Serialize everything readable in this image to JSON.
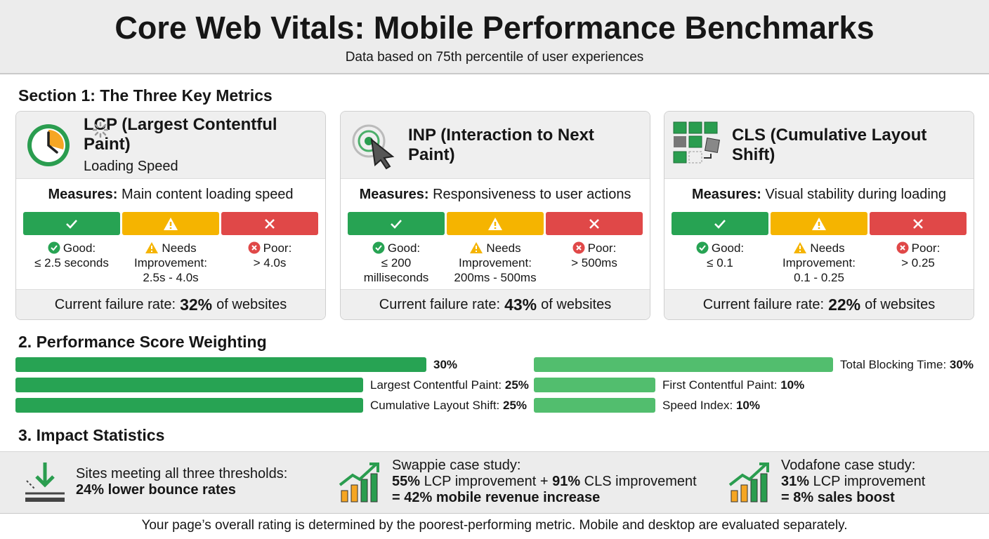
{
  "header": {
    "title": "Core Web Vitals: Mobile Performance Benchmarks",
    "subtitle": "Data based on 75th percentile of user experiences"
  },
  "section1": {
    "heading": "Section 1: The Three Key Metrics",
    "cards": [
      {
        "title": "LCP (Largest Contentful Paint)",
        "subtitle": "Loading Speed",
        "measures_label": "Measures:",
        "measures_text": "Main content loading speed",
        "ratings": [
          {
            "label": "Good:",
            "range": "≤ 2.5 seconds"
          },
          {
            "label": "Needs Improvement:",
            "range": "2.5s - 4.0s"
          },
          {
            "label": "Poor:",
            "range": "> 4.0s"
          }
        ],
        "failure": {
          "label": "Current failure rate:",
          "value": "32%",
          "suffix": "of websites"
        }
      },
      {
        "title": "INP (Interaction to Next Paint)",
        "measures_label": "Measures:",
        "measures_text": "Responsiveness to user actions",
        "ratings": [
          {
            "label": "Good:",
            "range": "≤ 200 milliseconds"
          },
          {
            "label": "Needs Improvement:",
            "range": "200ms - 500ms"
          },
          {
            "label": "Poor:",
            "range": "> 500ms"
          }
        ],
        "failure": {
          "label": "Current failure rate:",
          "value": "43%",
          "suffix": "of websites"
        }
      },
      {
        "title": "CLS (Cumulative Layout Shift)",
        "measures_label": "Measures:",
        "measures_text": "Visual stability during loading",
        "ratings": [
          {
            "label": "Good:",
            "range": "≤ 0.1"
          },
          {
            "label": "Needs Improvement:",
            "range": "0.1 - 0.25"
          },
          {
            "label": "Poor:",
            "range": "> 0.25"
          }
        ],
        "failure": {
          "label": "Current failure rate:",
          "value": "22%",
          "suffix": "of websites"
        }
      }
    ]
  },
  "section2": {
    "heading": "2. Performance Score Weighting",
    "left": [
      {
        "value": 30,
        "value_label": "30%"
      },
      {
        "name": "Largest Contentful Paint:",
        "value": 25,
        "value_label": "25%"
      },
      {
        "name": "Cumulative Layout Shift:",
        "value": 25,
        "value_label": "25%"
      }
    ],
    "right": [
      {
        "name": "Total Blocking Time:",
        "value": 30,
        "value_label": "30%"
      },
      {
        "name": "First Contentful Paint:",
        "value": 10,
        "value_label": "10%"
      },
      {
        "name": "Speed Index:",
        "value": 10,
        "value_label": "10%"
      }
    ]
  },
  "section3": {
    "heading": "3. Impact Statistics",
    "items": [
      {
        "title": "Sites meeting all three thresholds:",
        "lines": [
          [
            {
              "text": "24% lower bounce rates",
              "bold": true
            }
          ]
        ]
      },
      {
        "title": "Swappie case study:",
        "lines": [
          [
            {
              "text": "55%",
              "bold": true
            },
            {
              "text": " LCP improvement + ",
              "bold": false
            },
            {
              "text": "91%",
              "bold": true
            },
            {
              "text": " CLS improvement",
              "bold": false
            }
          ],
          [
            {
              "text": "= 42% mobile revenue increase",
              "bold": true
            }
          ]
        ]
      },
      {
        "title": "Vodafone case study:",
        "lines": [
          [
            {
              "text": "31%",
              "bold": true
            },
            {
              "text": " LCP improvement",
              "bold": false
            }
          ],
          [
            {
              "text": "= 8% sales boost",
              "bold": true
            }
          ]
        ]
      }
    ]
  },
  "footer": "Your page’s overall rating is determined by the poorest-performing metric. Mobile and desktop are evaluated separately."
}
